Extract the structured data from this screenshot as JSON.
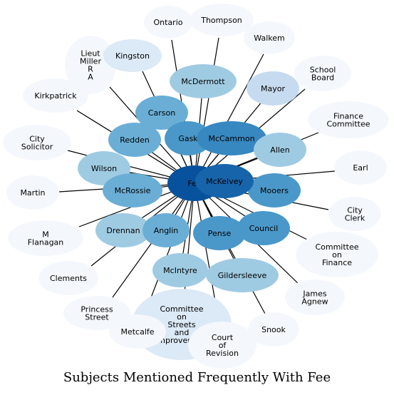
{
  "caption": "Subjects Mentioned Frequently With Fee",
  "center": "Fee",
  "nodes": [
    {
      "key": "ontario",
      "label": [
        "Ontario"
      ],
      "color": "#f4f8fd"
    },
    {
      "key": "thompson",
      "label": [
        "Thompson"
      ],
      "color": "#f4f8fd"
    },
    {
      "key": "walkem",
      "label": [
        "Walkem"
      ],
      "color": "#f4f8fd"
    },
    {
      "key": "lieut-miller",
      "label": [
        "Lieut",
        "Miller",
        "R",
        "A"
      ],
      "color": "#f4f8fd"
    },
    {
      "key": "kingston",
      "label": [
        "Kingston"
      ],
      "color": "#dce9f6"
    },
    {
      "key": "school-board",
      "label": [
        "School",
        "Board"
      ],
      "color": "#f4f8fd"
    },
    {
      "key": "mcdermott",
      "label": [
        "McDermott"
      ],
      "color": "#9fcbe2"
    },
    {
      "key": "mayor",
      "label": [
        "Mayor"
      ],
      "color": "#c6dbef"
    },
    {
      "key": "kirkpatrick",
      "label": [
        "Kirkpatrick"
      ],
      "color": "#f4f8fd"
    },
    {
      "key": "carson",
      "label": [
        "Carson"
      ],
      "color": "#6aaed6"
    },
    {
      "key": "finance-committee",
      "label": [
        "Finance",
        "Committee"
      ],
      "color": "#f4f8fd"
    },
    {
      "key": "city-solicitor",
      "label": [
        "City",
        "Solicitor"
      ],
      "color": "#f4f8fd"
    },
    {
      "key": "redden",
      "label": [
        "Redden"
      ],
      "color": "#6aaed6"
    },
    {
      "key": "gask",
      "label": [
        "Gask"
      ],
      "color": "#4a98c9"
    },
    {
      "key": "mccammon",
      "label": [
        "McCammon"
      ],
      "color": "#3787c0"
    },
    {
      "key": "allen",
      "label": [
        "Allen"
      ],
      "color": "#9fcbe2"
    },
    {
      "key": "earl",
      "label": [
        "Earl"
      ],
      "color": "#f4f8fd"
    },
    {
      "key": "wilson",
      "label": [
        "Wilson"
      ],
      "color": "#9fcbe2"
    },
    {
      "key": "martin",
      "label": [
        "Martin"
      ],
      "color": "#f4f8fd"
    },
    {
      "key": "mcrossie",
      "label": [
        "McRossie"
      ],
      "color": "#6aaed6"
    },
    {
      "key": "mckelvey",
      "label": [
        "McKelvey"
      ],
      "color": "#1764ab"
    },
    {
      "key": "mooers",
      "label": [
        "Mooers"
      ],
      "color": "#4a98c9"
    },
    {
      "key": "city-clerk",
      "label": [
        "City",
        "Clerk"
      ],
      "color": "#f4f8fd"
    },
    {
      "key": "m-flanagan",
      "label": [
        "M",
        "Flanagan"
      ],
      "color": "#f4f8fd"
    },
    {
      "key": "drennan",
      "label": [
        "Drennan"
      ],
      "color": "#9fcbe2"
    },
    {
      "key": "anglin",
      "label": [
        "Anglin"
      ],
      "color": "#6aaed6"
    },
    {
      "key": "pense",
      "label": [
        "Pense"
      ],
      "color": "#4a98c9"
    },
    {
      "key": "council",
      "label": [
        "Council"
      ],
      "color": "#4a98c9"
    },
    {
      "key": "committee-on-finance",
      "label": [
        "Committee",
        "on",
        "Finance"
      ],
      "color": "#f4f8fd"
    },
    {
      "key": "clements",
      "label": [
        "Clements"
      ],
      "color": "#f4f8fd"
    },
    {
      "key": "mcintyre",
      "label": [
        "McIntyre"
      ],
      "color": "#9fcbe2"
    },
    {
      "key": "gildersleeve",
      "label": [
        "Gildersleeve"
      ],
      "color": "#9fcbe2"
    },
    {
      "key": "james-agnew",
      "label": [
        "James",
        "Agnew"
      ],
      "color": "#f4f8fd"
    },
    {
      "key": "princess-street",
      "label": [
        "Princess",
        "Street"
      ],
      "color": "#f4f8fd"
    },
    {
      "key": "committee-on-streets",
      "label": [
        "Committee",
        "on",
        "Streets",
        "and",
        "Improvement"
      ],
      "color": "#dce9f6"
    },
    {
      "key": "snook",
      "label": [
        "Snook"
      ],
      "color": "#f4f8fd"
    },
    {
      "key": "metcalfe",
      "label": [
        "Metcalfe"
      ],
      "color": "#f4f8fd"
    },
    {
      "key": "court-of-revision",
      "label": [
        "Court",
        "of",
        "Revision"
      ],
      "color": "#f4f8fd"
    }
  ],
  "colors": {
    "center": "#08519c",
    "edge": "#000000",
    "background": "#ffffff"
  }
}
